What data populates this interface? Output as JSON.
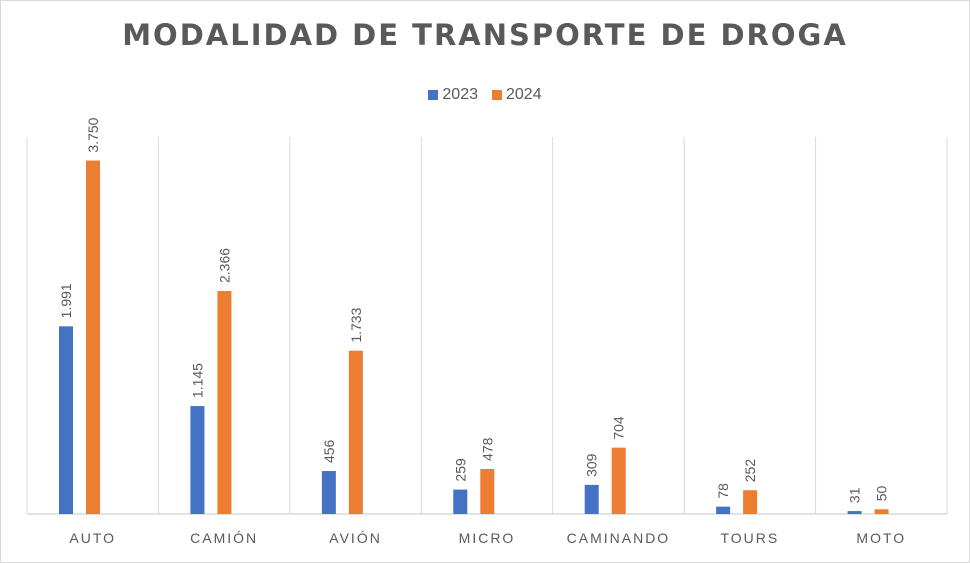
{
  "chart_data": {
    "type": "bar",
    "title": "MODALIDAD DE TRANSPORTE DE DROGA",
    "categories": [
      "AUTO",
      "CAMIÓN",
      "AVIÓN",
      "MICRO",
      "CAMINANDO",
      "TOURS",
      "MOTO"
    ],
    "series": [
      {
        "name": "2023",
        "color": "#4472C4",
        "values": [
          1991,
          1145,
          456,
          259,
          309,
          78,
          31
        ],
        "labels": [
          "1.991",
          "1.145",
          "456",
          "259",
          "309",
          "78",
          "31"
        ]
      },
      {
        "name": "2024",
        "color": "#ED7D31",
        "values": [
          3750,
          2366,
          1733,
          478,
          704,
          252,
          50
        ],
        "labels": [
          "3.750",
          "2.366",
          "1.733",
          "478",
          "704",
          "252",
          "50"
        ]
      }
    ],
    "ylim": [
      0,
      4000
    ],
    "grid": "vertical category separators",
    "legend": "top-center",
    "xlabel": "",
    "ylabel": ""
  }
}
